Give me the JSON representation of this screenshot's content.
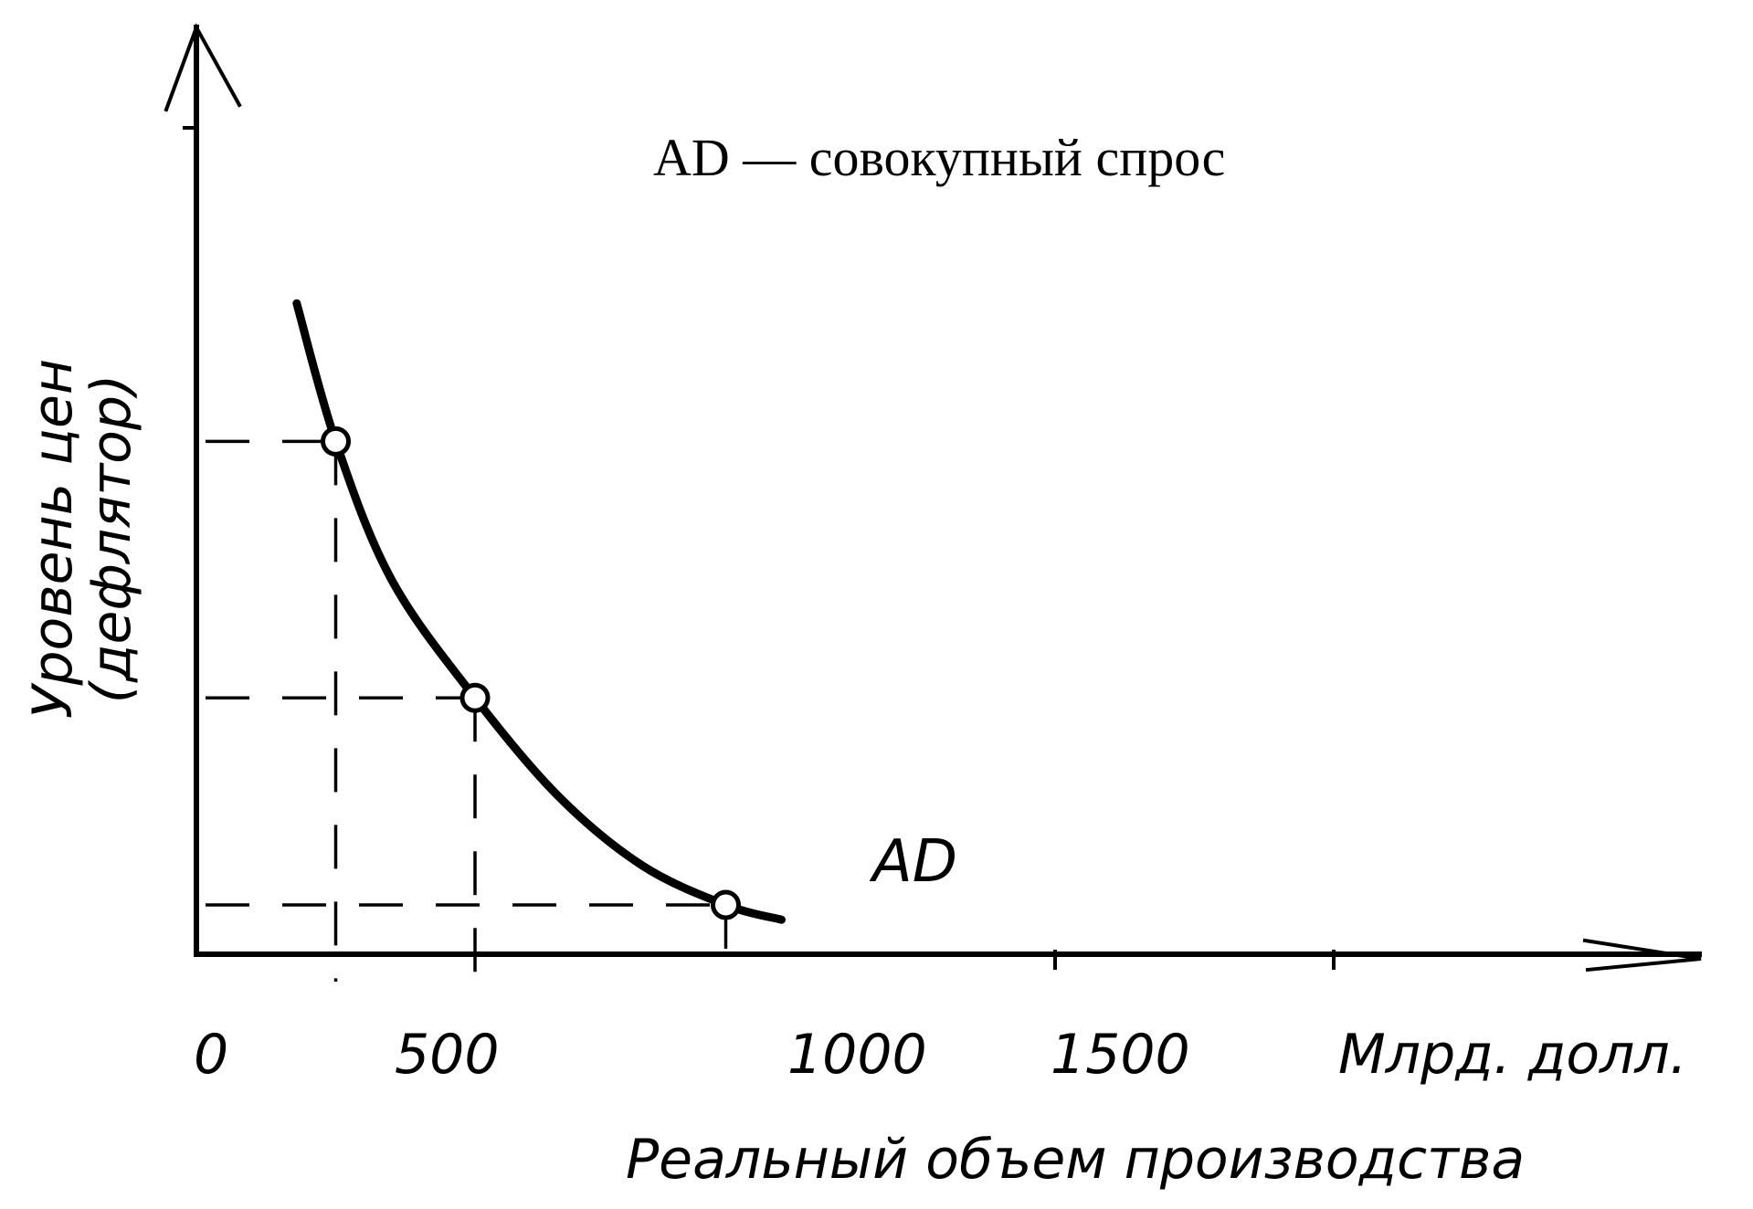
{
  "chart_data": {
    "type": "line",
    "title": "AD — совокупный спрос",
    "xlabel": "Реальный объем производства",
    "xunit": "Млрд. долл.",
    "ylabel_lines": [
      "Уровень цен",
      "(дефлятор)"
    ],
    "x_ticks": [
      "0",
      "500",
      "1000",
      "1500"
    ],
    "xlim": [
      0,
      2500
    ],
    "ylim": [
      0,
      10
    ],
    "grid": false,
    "series": [
      {
        "name": "AD",
        "x": [
          180,
          250,
          350,
          500,
          650,
          800,
          950,
          1050
        ],
        "y": [
          6.6,
          5.2,
          3.8,
          2.6,
          1.6,
          0.9,
          0.5,
          0.35
        ]
      }
    ],
    "marked_points": [
      {
        "x": 250,
        "y": 5.2
      },
      {
        "x": 500,
        "y": 2.6
      },
      {
        "x": 950,
        "y": 0.5
      }
    ]
  }
}
